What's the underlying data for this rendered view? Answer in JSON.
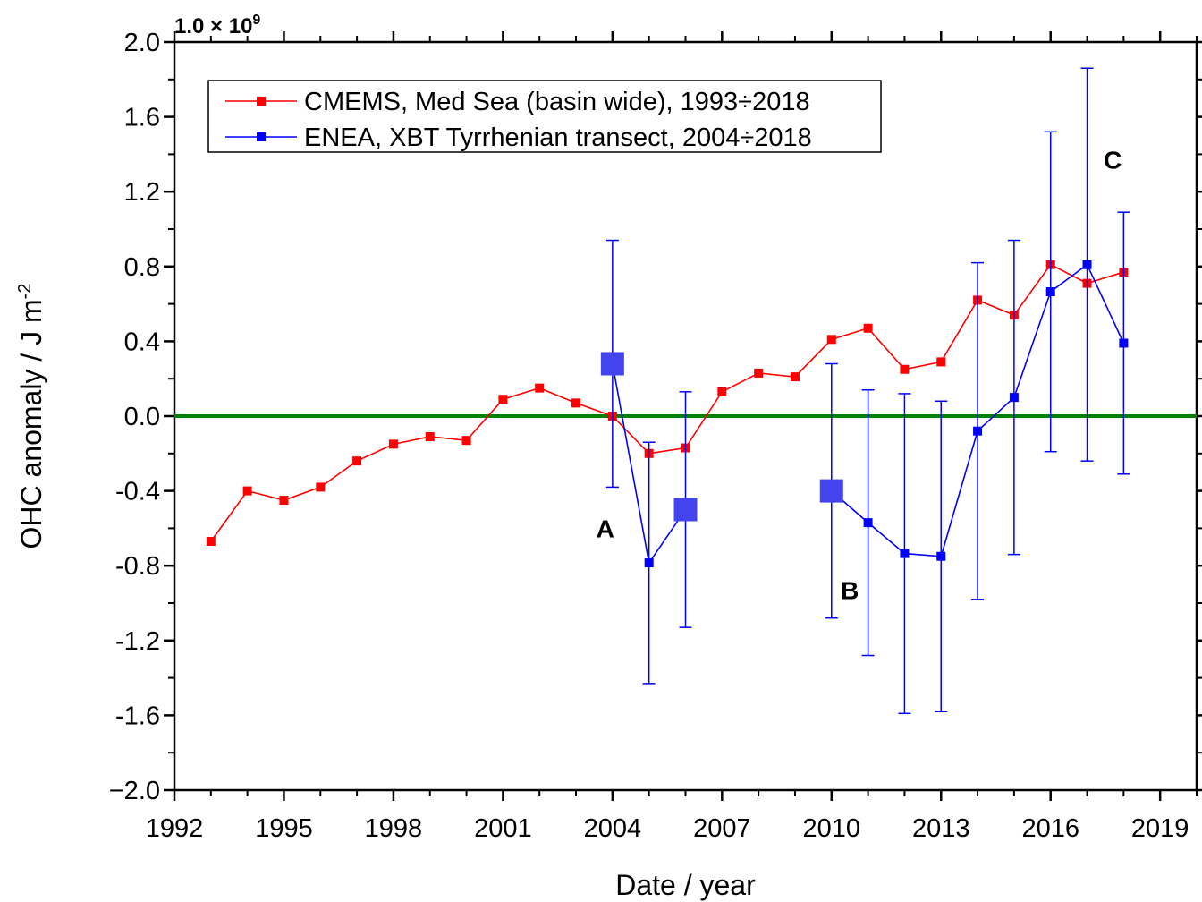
{
  "chart_data": {
    "type": "line",
    "xlabel": "Date / year",
    "ylabel": {
      "text": "OHC anomaly / J m",
      "superscript": "-2"
    },
    "y_multiplier": {
      "text": "1.0 × 10",
      "superscript": "9"
    },
    "xlim": [
      1992,
      2020
    ],
    "ylim": [
      -2.0,
      2.0
    ],
    "xticks": [
      1992,
      1995,
      1998,
      2001,
      2004,
      2007,
      2010,
      2013,
      2016,
      2019
    ],
    "xminor": [
      1993,
      1994,
      1996,
      1997,
      1999,
      2000,
      2002,
      2003,
      2005,
      2006,
      2008,
      2009,
      2011,
      2012,
      2014,
      2015,
      2017,
      2018,
      2020
    ],
    "yticks": [
      {
        "value": -2.0,
        "label": "−2.0"
      },
      {
        "value": -1.6,
        "label": "-1.6"
      },
      {
        "value": -1.2,
        "label": "-1.2"
      },
      {
        "value": -0.8,
        "label": "-0.8"
      },
      {
        "value": -0.4,
        "label": "-0.4"
      },
      {
        "value": 0.0,
        "label": "0.0"
      },
      {
        "value": 0.4,
        "label": "0.4"
      },
      {
        "value": 0.8,
        "label": "0.8"
      },
      {
        "value": 1.2,
        "label": "1.2"
      },
      {
        "value": 1.6,
        "label": "1.6"
      },
      {
        "value": 2.0,
        "label": "2.0"
      }
    ],
    "yminor": [
      -1.8,
      -1.4,
      -1.0,
      -0.6,
      -0.2,
      0.2,
      0.6,
      1.0,
      1.4,
      1.8
    ],
    "reference_line": {
      "y": 0,
      "color": "#008000"
    },
    "series": [
      {
        "name": "CMEMS, Med Sea (basin wide), 1993÷2018",
        "color": "#ff0000",
        "x": [
          1993,
          1994,
          1995,
          1996,
          1997,
          1998,
          1999,
          2000,
          2001,
          2002,
          2003,
          2004,
          2005,
          2006,
          2007,
          2008,
          2009,
          2010,
          2011,
          2012,
          2013,
          2014,
          2015,
          2016,
          2017,
          2018
        ],
        "values": [
          -0.67,
          -0.4,
          -0.45,
          -0.38,
          -0.24,
          -0.15,
          -0.11,
          -0.13,
          0.09,
          0.15,
          0.07,
          0.0,
          -0.2,
          -0.17,
          0.13,
          0.23,
          0.21,
          0.41,
          0.47,
          0.25,
          0.29,
          0.62,
          0.54,
          0.81,
          0.71,
          0.77
        ]
      },
      {
        "name": "ENEA, XBT Tyrrhenian transect, 2004÷2018",
        "color": "#0000ff",
        "x": [
          2004,
          2005,
          2006,
          2007,
          2008,
          2009,
          2010,
          2011,
          2012,
          2013,
          2014,
          2015,
          2016,
          2017,
          2018
        ],
        "values": [
          0.28,
          -0.785,
          -0.5,
          null,
          null,
          null,
          -0.4,
          -0.57,
          -0.735,
          -0.75,
          -0.08,
          0.1,
          0.665,
          0.81,
          0.39
        ],
        "errors": [
          0.66,
          0.645,
          0.63,
          null,
          null,
          null,
          0.68,
          0.71,
          0.855,
          0.83,
          0.9,
          0.84,
          0.855,
          1.05,
          0.7
        ],
        "marker_sizes": [
          26,
          10,
          26,
          null,
          null,
          null,
          26,
          10,
          10,
          10,
          10,
          10,
          10,
          10,
          10
        ],
        "large_marker_color": "#4444ee"
      }
    ],
    "annotations": [
      {
        "text": "A",
        "x": 2003.8,
        "y": -0.6
      },
      {
        "text": "B",
        "x": 2010.5,
        "y": -0.93
      },
      {
        "text": "C",
        "x": 2017.7,
        "y": 1.37
      }
    ]
  }
}
